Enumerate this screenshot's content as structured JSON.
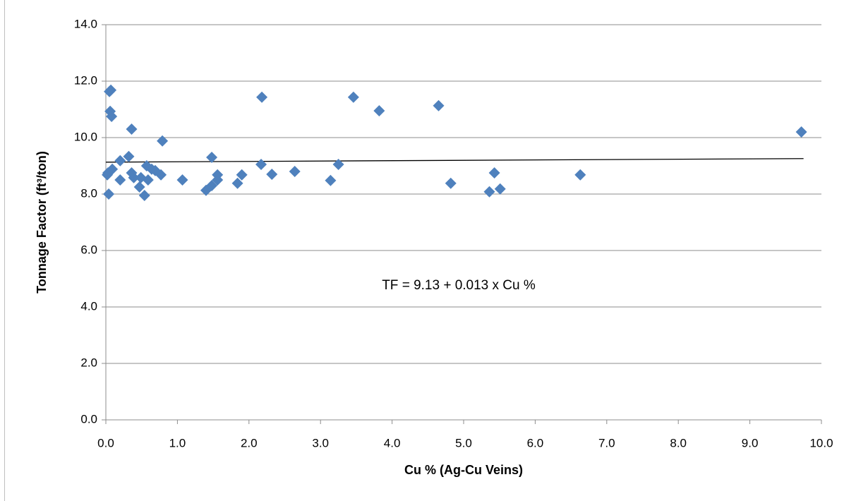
{
  "chart_data": {
    "type": "scatter",
    "xlabel": "Cu % (Ag-Cu Veins)",
    "ylabel": "Tonnage Factor (ft³/ton)",
    "annotation": "TF = 9.13 + 0.013 x Cu %",
    "xlim": [
      0,
      10
    ],
    "ylim": [
      0,
      14
    ],
    "xticks": [
      {
        "value": 0,
        "label": "0.0"
      },
      {
        "value": 1,
        "label": "1.0"
      },
      {
        "value": 2,
        "label": "2.0"
      },
      {
        "value": 3,
        "label": "3.0"
      },
      {
        "value": 4,
        "label": "4.0"
      },
      {
        "value": 5,
        "label": "5.0"
      },
      {
        "value": 6,
        "label": "6.0"
      },
      {
        "value": 7,
        "label": "7.0"
      },
      {
        "value": 8,
        "label": "8.0"
      },
      {
        "value": 9,
        "label": "9.0"
      },
      {
        "value": 10,
        "label": "10.0"
      }
    ],
    "yticks": [
      {
        "value": 0,
        "label": "0.0"
      },
      {
        "value": 2,
        "label": "2.0"
      },
      {
        "value": 4,
        "label": "4.0"
      },
      {
        "value": 6,
        "label": "6.0"
      },
      {
        "value": 8,
        "label": "8.0"
      },
      {
        "value": 10,
        "label": "10.0"
      },
      {
        "value": 12,
        "label": "12.0"
      },
      {
        "value": 14,
        "label": "14.0"
      }
    ],
    "grid": true,
    "color": "#4f81bd",
    "x": [
      0.05,
      0.07,
      0.06,
      0.08,
      0.03,
      0.02,
      0.09,
      0.04,
      0.2,
      0.2,
      0.32,
      0.36,
      0.36,
      0.39,
      0.47,
      0.49,
      0.54,
      0.57,
      0.59,
      0.64,
      0.69,
      0.77,
      0.79,
      1.07,
      1.4,
      1.48,
      1.48,
      1.56,
      1.56,
      1.84,
      1.9,
      2.17,
      2.18,
      2.32,
      2.64,
      3.14,
      3.25,
      3.46,
      3.82,
      4.65,
      4.82,
      5.36,
      5.43,
      5.51,
      6.63,
      9.72
    ],
    "values": [
      11.63,
      11.68,
      10.93,
      10.75,
      8.75,
      8.68,
      8.88,
      8.0,
      8.5,
      9.18,
      9.33,
      10.3,
      8.75,
      8.58,
      8.25,
      8.58,
      7.95,
      9.0,
      8.5,
      8.88,
      8.83,
      8.68,
      9.88,
      8.5,
      8.13,
      8.3,
      9.3,
      8.5,
      8.68,
      8.38,
      8.68,
      9.05,
      11.43,
      8.7,
      8.8,
      8.48,
      9.05,
      11.43,
      10.95,
      11.13,
      8.38,
      8.08,
      8.75,
      8.18,
      8.68,
      10.2
    ],
    "trendline": {
      "color": "#000000",
      "x": [
        0,
        9.75
      ],
      "values": [
        9.13,
        9.257
      ]
    }
  }
}
